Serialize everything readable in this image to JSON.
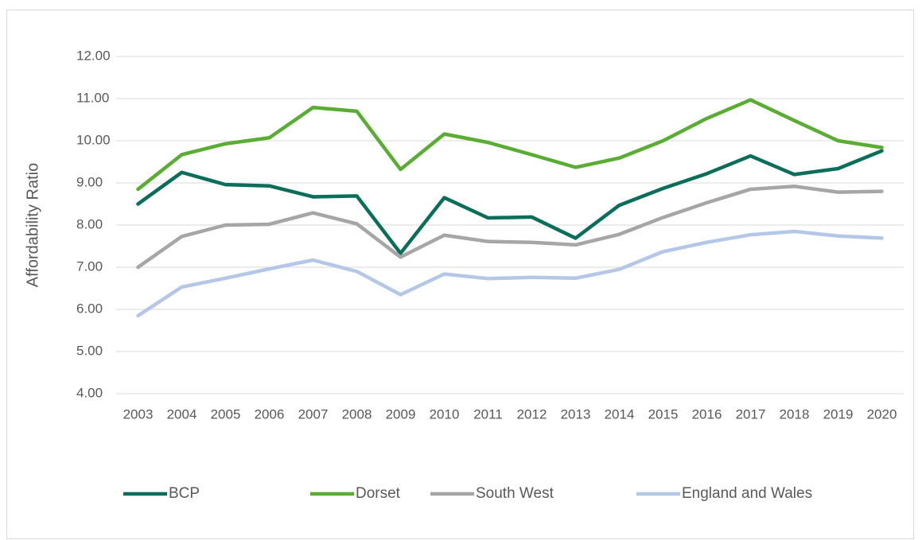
{
  "chart_data": {
    "type": "line",
    "y_label": "Affordability Ratio",
    "categories": [
      "2003",
      "2004",
      "2005",
      "2006",
      "2007",
      "2008",
      "2009",
      "2010",
      "2011",
      "2012",
      "2013",
      "2014",
      "2015",
      "2016",
      "2017",
      "2018",
      "2019",
      "2020"
    ],
    "series": [
      {
        "name": "BCP",
        "color": "#0b6e5b",
        "values": [
          8.5,
          9.25,
          8.96,
          8.93,
          8.67,
          8.69,
          7.33,
          8.65,
          8.17,
          8.19,
          7.69,
          8.47,
          8.87,
          9.22,
          9.64,
          9.2,
          9.34,
          9.76
        ]
      },
      {
        "name": "Dorset",
        "color": "#58ad32",
        "values": [
          8.85,
          9.67,
          9.93,
          10.07,
          10.79,
          10.7,
          9.32,
          10.16,
          9.96,
          9.67,
          9.37,
          9.59,
          10.0,
          10.53,
          10.97,
          10.48,
          10.0,
          9.84
        ]
      },
      {
        "name": "South West",
        "color": "#a6a6a6",
        "values": [
          7.0,
          7.73,
          8.0,
          8.02,
          8.29,
          8.03,
          7.24,
          7.76,
          7.61,
          7.59,
          7.53,
          7.78,
          8.18,
          8.53,
          8.85,
          8.92,
          8.78,
          8.8
        ]
      },
      {
        "name": "England and Wales",
        "color": "#b4c7e7",
        "values": [
          5.85,
          6.53,
          6.74,
          6.96,
          7.17,
          6.9,
          6.35,
          6.84,
          6.73,
          6.76,
          6.74,
          6.95,
          7.37,
          7.59,
          7.77,
          7.85,
          7.74,
          7.69
        ]
      }
    ],
    "ylim": [
      4,
      12
    ],
    "yticks": [
      {
        "value": 4,
        "label": "4.00"
      },
      {
        "value": 5,
        "label": "5.00"
      },
      {
        "value": 6,
        "label": "6.00"
      },
      {
        "value": 7,
        "label": "7.00"
      },
      {
        "value": 8,
        "label": "8.00"
      },
      {
        "value": 9,
        "label": "9.00"
      },
      {
        "value": 10,
        "label": "10.00"
      },
      {
        "value": 11,
        "label": "11.00"
      },
      {
        "value": 12,
        "label": "12.00"
      }
    ],
    "grid": true,
    "legend": "bottom"
  }
}
